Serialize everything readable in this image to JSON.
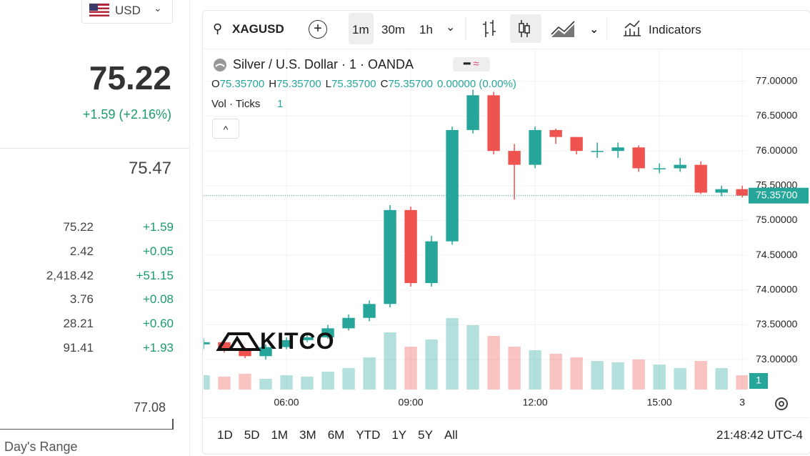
{
  "ui": {
    "currency": "USD",
    "price": "75.22",
    "change": "+1.59 (+2.16%)",
    "ask": "75.47",
    "rows": [
      [
        "75.22",
        "+1.59"
      ],
      [
        "2.42",
        "+0.05"
      ],
      [
        "2,418.42",
        "+51.15"
      ],
      [
        "3.76",
        "+0.08"
      ],
      [
        "28.21",
        "+0.60"
      ],
      [
        "91.41",
        "+1.93"
      ]
    ],
    "range_high": "77.08",
    "range_label": "Day's Range",
    "symbol": "XAGUSD",
    "intervals": [
      "1m",
      "30m",
      "1h"
    ],
    "indicators": "Indicators",
    "ranges": [
      "1D",
      "5D",
      "1M",
      "3M",
      "6M",
      "YTD",
      "1Y",
      "5Y",
      "All"
    ],
    "clock": "21:48:42 UTC-4",
    "watermark": "KITCO"
  },
  "chart_data": {
    "type": "candlestick",
    "title": "Silver / U.S. Dollar · 1 · OANDA",
    "legend_ohlc": [
      {
        "key": "O",
        "value": 75.357,
        "label": "75.35700"
      },
      {
        "key": "H",
        "value": 75.357,
        "label": "75.35700"
      },
      {
        "key": "L",
        "value": 75.357,
        "label": "75.35700"
      },
      {
        "key": "C",
        "value": 75.357,
        "label": "75.35700"
      }
    ],
    "legend_change": "0.00000 (0.00%)",
    "volume_legend": {
      "name": "Vol · Ticks",
      "value": 1
    },
    "x": [
      4,
      4.5,
      5,
      5.5,
      6,
      6.5,
      7,
      7.5,
      8,
      8.5,
      9,
      9.5,
      10,
      10.5,
      11,
      11.5,
      12,
      12.5,
      13,
      13.5,
      14,
      14.5,
      15,
      15.5,
      16,
      16.5,
      17
    ],
    "open": [
      73.22,
      73.25,
      73.15,
      73.05,
      73.18,
      73.28,
      73.32,
      73.45,
      73.6,
      73.8,
      75.15,
      74.1,
      74.7,
      76.3,
      76.8,
      76.0,
      75.8,
      76.3,
      76.2,
      76.0,
      76.0,
      76.05,
      75.75,
      75.75,
      75.8,
      75.4,
      75.45
    ],
    "high": [
      73.3,
      73.28,
      73.18,
      73.22,
      73.32,
      73.38,
      73.5,
      73.65,
      73.85,
      75.22,
      75.2,
      74.78,
      76.35,
      76.88,
      76.85,
      76.1,
      76.35,
      76.32,
      76.2,
      76.12,
      76.12,
      76.08,
      75.82,
      75.9,
      75.85,
      75.5,
      75.5
    ],
    "low": [
      73.15,
      73.1,
      73.02,
      73.0,
      73.15,
      73.25,
      73.3,
      73.42,
      73.55,
      73.75,
      74.05,
      74.05,
      74.65,
      76.25,
      75.95,
      75.3,
      75.75,
      76.1,
      75.95,
      75.9,
      75.9,
      75.7,
      75.68,
      75.7,
      75.38,
      75.35,
      75.33
    ],
    "close": [
      73.25,
      73.15,
      73.05,
      73.18,
      73.28,
      73.32,
      73.45,
      73.6,
      73.8,
      75.15,
      74.1,
      74.7,
      76.3,
      76.8,
      76.0,
      75.8,
      76.3,
      76.2,
      76.0,
      76.0,
      76.05,
      75.75,
      75.75,
      75.8,
      75.4,
      75.45,
      75.357
    ],
    "volume": [
      20,
      18,
      22,
      15,
      20,
      18,
      25,
      30,
      45,
      80,
      60,
      70,
      100,
      90,
      75,
      60,
      55,
      50,
      45,
      40,
      38,
      42,
      35,
      30,
      40,
      30,
      20
    ],
    "up_color": "#26a69a",
    "down_color": "#ef5350",
    "last_price": {
      "value": 75.357,
      "label": "75.35700"
    },
    "xlim": [
      4,
      17.1
    ],
    "xticks": [
      {
        "value": 6,
        "label": "06:00"
      },
      {
        "value": 9,
        "label": "09:00"
      },
      {
        "value": 12,
        "label": "12:00"
      },
      {
        "value": 15,
        "label": "15:00"
      },
      {
        "value": 17,
        "label": "3"
      }
    ],
    "ylim": [
      72.57,
      77.45
    ],
    "yticks": [
      {
        "value": 73,
        "label": "73.00000"
      },
      {
        "value": 73.5,
        "label": "73.50000"
      },
      {
        "value": 74,
        "label": "74.00000"
      },
      {
        "value": 74.5,
        "label": "74.50000"
      },
      {
        "value": 75,
        "label": "75.00000"
      },
      {
        "value": 75.5,
        "label": "75.50000"
      },
      {
        "value": 76,
        "label": "76.00000"
      },
      {
        "value": 76.5,
        "label": "76.50000"
      },
      {
        "value": 77,
        "label": "77.00000"
      }
    ],
    "grid": true
  }
}
